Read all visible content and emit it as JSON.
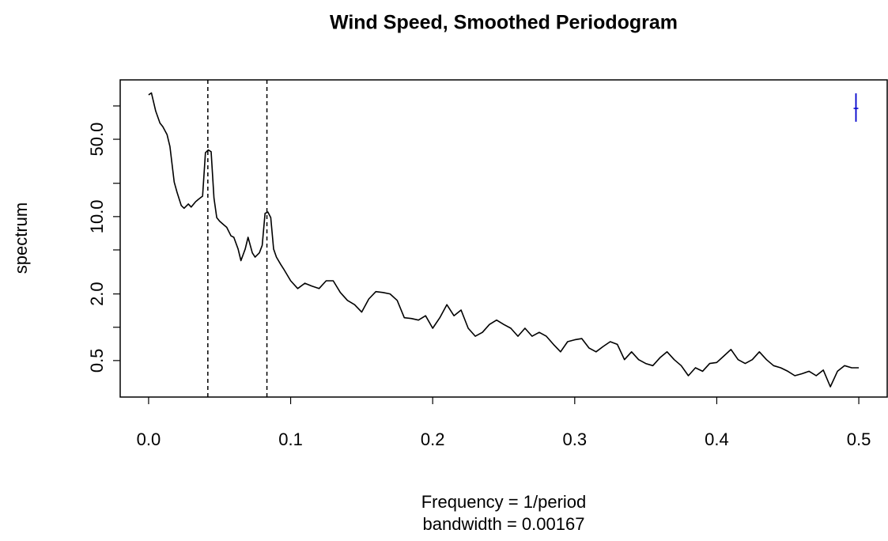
{
  "chart_data": {
    "type": "line",
    "title": "Wind Speed, Smoothed Periodogram",
    "xlabel": "Frequency = 1/period",
    "subtitle": "bandwidth = 0.00167",
    "ylabel": "spectrum",
    "log_y": true,
    "color": "#000000",
    "xlim": [
      -0.02,
      0.52
    ],
    "ylim": [
      0.234,
      172
    ],
    "xticks": [
      {
        "value": 0,
        "label": "0.0"
      },
      0.1,
      0.2,
      0.3,
      0.4,
      0.5
    ],
    "yticks": [
      0.5,
      {
        "value": 2,
        "label": "2.0"
      },
      {
        "value": 10,
        "label": "10.0"
      },
      {
        "value": 50,
        "label": "50.0"
      }
    ],
    "yticks_unlabeled": [
      1,
      5,
      20,
      100
    ],
    "vlines": [
      0.0417,
      0.0833
    ],
    "ci_bar": {
      "x": 0.498,
      "center": 95,
      "lower": 72,
      "upper": 130,
      "color": "#0000cc"
    },
    "x": [
      0,
      0.002,
      0.005,
      0.008,
      0.01,
      0.013,
      0.015,
      0.018,
      0.02,
      0.023,
      0.025,
      0.028,
      0.03,
      0.033,
      0.035,
      0.038,
      0.04,
      0.042,
      0.044,
      0.046,
      0.048,
      0.05,
      0.053,
      0.055,
      0.058,
      0.06,
      0.063,
      0.065,
      0.068,
      0.07,
      0.073,
      0.075,
      0.078,
      0.08,
      0.082,
      0.084,
      0.086,
      0.088,
      0.09,
      0.093,
      0.095,
      0.1,
      0.105,
      0.11,
      0.115,
      0.12,
      0.125,
      0.13,
      0.135,
      0.14,
      0.145,
      0.15,
      0.155,
      0.16,
      0.165,
      0.17,
      0.175,
      0.18,
      0.185,
      0.19,
      0.195,
      0.2,
      0.205,
      0.21,
      0.215,
      0.22,
      0.225,
      0.23,
      0.235,
      0.24,
      0.245,
      0.25,
      0.255,
      0.26,
      0.265,
      0.27,
      0.275,
      0.28,
      0.285,
      0.29,
      0.295,
      0.3,
      0.305,
      0.31,
      0.315,
      0.32,
      0.325,
      0.33,
      0.335,
      0.34,
      0.345,
      0.35,
      0.355,
      0.36,
      0.365,
      0.37,
      0.375,
      0.38,
      0.385,
      0.39,
      0.395,
      0.4,
      0.405,
      0.41,
      0.415,
      0.42,
      0.425,
      0.43,
      0.435,
      0.44,
      0.445,
      0.45,
      0.455,
      0.46,
      0.465,
      0.47,
      0.475,
      0.48,
      0.485,
      0.49,
      0.495,
      0.5
    ],
    "values": [
      126,
      131,
      90,
      70,
      65,
      55,
      43,
      20.5,
      16.6,
      12.6,
      11.9,
      13,
      12.2,
      13.6,
      14.3,
      15.3,
      37.8,
      40,
      38.6,
      14.7,
      9.8,
      9.1,
      8.4,
      8,
      6.7,
      6.5,
      5.1,
      4.0,
      5.1,
      6.5,
      4.7,
      4.3,
      4.7,
      5.5,
      10.7,
      11,
      9.8,
      5.1,
      4.3,
      3.7,
      3.37,
      2.63,
      2.24,
      2.5,
      2.35,
      2.24,
      2.63,
      2.63,
      2.06,
      1.75,
      1.6,
      1.37,
      1.8,
      2.1,
      2.06,
      2.0,
      1.75,
      1.22,
      1.2,
      1.16,
      1.27,
      0.98,
      1.22,
      1.6,
      1.27,
      1.43,
      0.98,
      0.83,
      0.9,
      1.06,
      1.16,
      1.06,
      0.98,
      0.83,
      0.98,
      0.83,
      0.9,
      0.83,
      0.7,
      0.6,
      0.74,
      0.77,
      0.79,
      0.65,
      0.6,
      0.67,
      0.74,
      0.7,
      0.51,
      0.6,
      0.51,
      0.47,
      0.45,
      0.53,
      0.6,
      0.51,
      0.45,
      0.365,
      0.43,
      0.4,
      0.47,
      0.48,
      0.55,
      0.63,
      0.51,
      0.47,
      0.51,
      0.6,
      0.51,
      0.45,
      0.43,
      0.4,
      0.365,
      0.38,
      0.4,
      0.365,
      0.41,
      0.29,
      0.4,
      0.45,
      0.43,
      0.43
    ]
  }
}
